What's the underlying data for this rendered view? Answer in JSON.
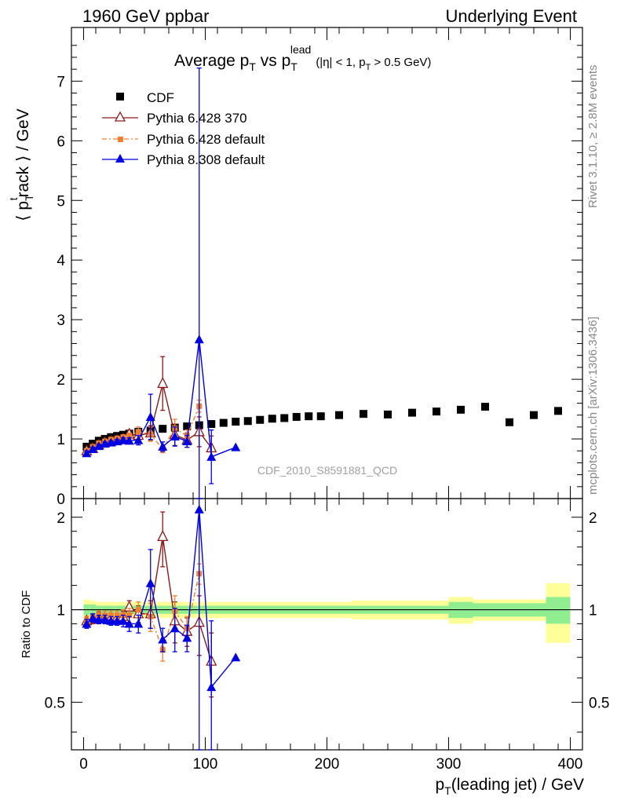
{
  "header": {
    "left": "1960 GeV ppbar",
    "right": "Underlying Event"
  },
  "title": {
    "prefix": "Average p",
    "sub1": "T",
    "mid": " vs p",
    "sub2": "T",
    "sup2": "lead",
    "suffix_parts": [
      "(|η| < 1, p",
      "T",
      " > 0.5 GeV)"
    ]
  },
  "ylabel_main": "⟨ p_T^t rack ⟩ / GeV",
  "ylabel_ratio": "Ratio to CDF",
  "xlabel": {
    "p": "p",
    "sub": "T",
    "rest": "(leading jet) / GeV"
  },
  "side_text_1": "Rivet 3.1.10, ≥ 2.8M events",
  "side_text_2": "mcplots.cern.ch [arXiv:1306.3436]",
  "watermark": "CDF_2010_S8591881_QCD",
  "colors": {
    "cdf": "#000000",
    "p6_370": "#8b1a1a",
    "p6_def": "#f08030",
    "p8_def": "#0000e0",
    "band_inner": "#90ee90",
    "band_outer": "#ffff99"
  },
  "chart_data": [
    {
      "type": "scatter",
      "panel": "main",
      "xlim": [
        -10,
        410
      ],
      "ylim": [
        0,
        7.9
      ],
      "yticks": [
        0,
        1,
        2,
        3,
        4,
        5,
        6,
        7
      ],
      "legend_position": "top-left",
      "series": [
        {
          "name": "CDF",
          "marker": "square",
          "x": [
            2.5,
            7.5,
            12.5,
            17.5,
            22.5,
            27.5,
            32.5,
            37.5,
            45,
            55,
            65,
            75,
            85,
            95,
            105,
            115,
            125,
            135,
            145,
            155,
            165,
            175,
            185,
            195,
            210,
            230,
            250,
            270,
            290,
            310,
            330,
            350,
            370,
            390
          ],
          "y": [
            0.87,
            0.92,
            0.97,
            1.0,
            1.03,
            1.05,
            1.07,
            1.09,
            1.12,
            1.14,
            1.17,
            1.19,
            1.21,
            1.23,
            1.25,
            1.27,
            1.29,
            1.3,
            1.32,
            1.34,
            1.35,
            1.37,
            1.38,
            1.38,
            1.4,
            1.42,
            1.41,
            1.44,
            1.46,
            1.49,
            1.54,
            1.28,
            1.4,
            1.47
          ]
        },
        {
          "name": "Pythia 6.428 370",
          "marker": "open-triangle",
          "x": [
            2.5,
            7.5,
            12.5,
            17.5,
            22.5,
            27.5,
            32.5,
            37.5,
            45,
            55,
            65,
            75,
            85,
            95,
            105
          ],
          "y": [
            0.8,
            0.84,
            0.9,
            0.94,
            0.96,
            0.98,
            1.0,
            1.08,
            1.06,
            1.1,
            1.93,
            1.07,
            0.98,
            1.12,
            0.85
          ],
          "err": [
            0.04,
            0.03,
            0.03,
            0.03,
            0.03,
            0.03,
            0.04,
            0.06,
            0.08,
            0.12,
            0.45,
            0.18,
            0.12,
            0.25,
            0.2
          ]
        },
        {
          "name": "Pythia 6.428 default",
          "marker": "square-small",
          "x": [
            2.5,
            7.5,
            12.5,
            17.5,
            22.5,
            27.5,
            32.5,
            37.5,
            45,
            55,
            65,
            75,
            85,
            95
          ],
          "y": [
            0.8,
            0.87,
            0.93,
            0.96,
            0.99,
            1.01,
            1.03,
            1.05,
            1.12,
            1.08,
            0.83,
            1.18,
            1.05,
            1.55
          ],
          "err": [
            0.04,
            0.03,
            0.03,
            0.03,
            0.03,
            0.03,
            0.04,
            0.05,
            0.08,
            0.12,
            0.06,
            0.15,
            0.1,
            0.1
          ]
        },
        {
          "name": "Pythia 8.308 default",
          "marker": "triangle",
          "x": [
            2.5,
            7.5,
            12.5,
            17.5,
            22.5,
            27.5,
            32.5,
            37.5,
            45,
            55,
            65,
            75,
            85,
            95,
            105,
            125
          ],
          "y": [
            0.76,
            0.83,
            0.88,
            0.92,
            0.94,
            0.96,
            0.98,
            0.97,
            0.98,
            1.37,
            0.87,
            1.04,
            0.96,
            2.67,
            0.7,
            0.86
          ],
          "err": [
            0.04,
            0.03,
            0.03,
            0.03,
            0.03,
            0.03,
            0.04,
            0.05,
            0.08,
            0.38,
            0.08,
            0.16,
            0.1,
            4.55,
            0.45,
            0.0
          ]
        }
      ]
    },
    {
      "type": "scatter",
      "panel": "ratio",
      "xlim": [
        -10,
        410
      ],
      "ylim": [
        0.35,
        2.3
      ],
      "yticks": [
        0.5,
        1,
        2
      ],
      "xticks": [
        0,
        100,
        200,
        300,
        400
      ],
      "ylabel": "Ratio to CDF",
      "bands": {
        "x_edges": [
          0,
          5,
          10,
          15,
          20,
          25,
          30,
          35,
          40,
          50,
          60,
          70,
          80,
          90,
          100,
          110,
          120,
          130,
          140,
          150,
          160,
          170,
          180,
          190,
          200,
          220,
          240,
          260,
          280,
          300,
          320,
          340,
          360,
          380,
          400
        ],
        "inner": [
          0.04,
          0.04,
          0.03,
          0.03,
          0.03,
          0.03,
          0.03,
          0.03,
          0.03,
          0.03,
          0.03,
          0.03,
          0.03,
          0.03,
          0.03,
          0.03,
          0.03,
          0.03,
          0.03,
          0.03,
          0.03,
          0.03,
          0.03,
          0.03,
          0.03,
          0.03,
          0.03,
          0.03,
          0.03,
          0.06,
          0.05,
          0.05,
          0.05,
          0.1
        ],
        "outer": [
          0.08,
          0.07,
          0.06,
          0.06,
          0.06,
          0.06,
          0.06,
          0.06,
          0.06,
          0.06,
          0.06,
          0.06,
          0.06,
          0.06,
          0.06,
          0.06,
          0.06,
          0.06,
          0.06,
          0.06,
          0.06,
          0.06,
          0.06,
          0.06,
          0.06,
          0.07,
          0.07,
          0.07,
          0.07,
          0.1,
          0.08,
          0.08,
          0.08,
          0.22
        ]
      },
      "series": [
        {
          "name": "Pythia 6.428 370",
          "x": [
            2.5,
            7.5,
            12.5,
            17.5,
            22.5,
            27.5,
            32.5,
            37.5,
            45,
            55,
            65,
            75,
            85,
            95,
            105
          ],
          "y": [
            0.92,
            0.93,
            0.95,
            0.94,
            0.94,
            0.94,
            0.95,
            1.02,
            0.97,
            0.97,
            1.73,
            0.92,
            0.85,
            0.91,
            0.68
          ],
          "err": [
            0.03,
            0.03,
            0.03,
            0.03,
            0.03,
            0.03,
            0.04,
            0.05,
            0.06,
            0.1,
            0.35,
            0.14,
            0.09,
            0.2,
            0.16
          ]
        },
        {
          "name": "Pythia 6.428 default",
          "x": [
            2.5,
            7.5,
            12.5,
            17.5,
            22.5,
            27.5,
            32.5,
            37.5,
            45,
            55,
            65,
            75,
            85,
            95
          ],
          "y": [
            0.92,
            0.94,
            0.96,
            0.96,
            0.96,
            0.96,
            0.96,
            0.96,
            1.0,
            0.95,
            0.74,
            0.99,
            0.87,
            1.31
          ],
          "err": [
            0.03,
            0.03,
            0.03,
            0.03,
            0.03,
            0.03,
            0.04,
            0.05,
            0.06,
            0.1,
            0.06,
            0.12,
            0.08,
            0.1
          ]
        },
        {
          "name": "Pythia 8.308 default",
          "x": [
            2.5,
            7.5,
            12.5,
            17.5,
            22.5,
            27.5,
            32.5,
            37.5,
            45,
            55,
            65,
            75,
            85,
            95,
            105,
            125
          ],
          "y": [
            0.9,
            0.94,
            0.93,
            0.93,
            0.92,
            0.92,
            0.92,
            0.9,
            0.9,
            1.22,
            0.8,
            0.87,
            0.81,
            2.12,
            0.56,
            0.7
          ],
          "err": [
            0.03,
            0.03,
            0.03,
            0.03,
            0.03,
            0.03,
            0.04,
            0.05,
            0.06,
            0.35,
            0.07,
            0.14,
            0.08,
            3.6,
            0.36,
            0.0
          ]
        }
      ]
    }
  ]
}
